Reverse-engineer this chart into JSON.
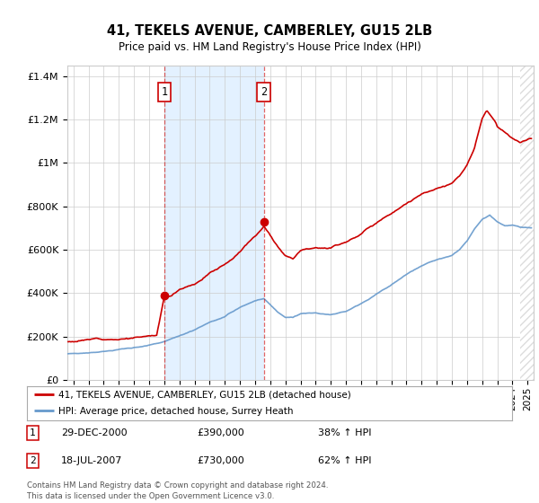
{
  "title": "41, TEKELS AVENUE, CAMBERLEY, GU15 2LB",
  "subtitle": "Price paid vs. HM Land Registry's House Price Index (HPI)",
  "red_line_label": "41, TEKELS AVENUE, CAMBERLEY, GU15 2LB (detached house)",
  "blue_line_label": "HPI: Average price, detached house, Surrey Heath",
  "annotation1": {
    "label": "1",
    "date_x": 2001.0,
    "price": 390000,
    "text_date": "29-DEC-2000",
    "text_price": "£390,000",
    "text_extra": "38% ↑ HPI"
  },
  "annotation2": {
    "label": "2",
    "date_x": 2007.58,
    "price": 730000,
    "text_date": "18-JUL-2007",
    "text_price": "£730,000",
    "text_extra": "62% ↑ HPI"
  },
  "footer": "Contains HM Land Registry data © Crown copyright and database right 2024.\nThis data is licensed under the Open Government Licence v3.0.",
  "ylim": [
    0,
    1450000
  ],
  "xlim_start": 1994.6,
  "xlim_end": 2025.4,
  "red_color": "#cc0000",
  "blue_color": "#6699cc",
  "shading_color": "#ddeeff",
  "hatch_color": "#bbbbbb",
  "background_color": "#ffffff",
  "grid_color": "#cccccc"
}
